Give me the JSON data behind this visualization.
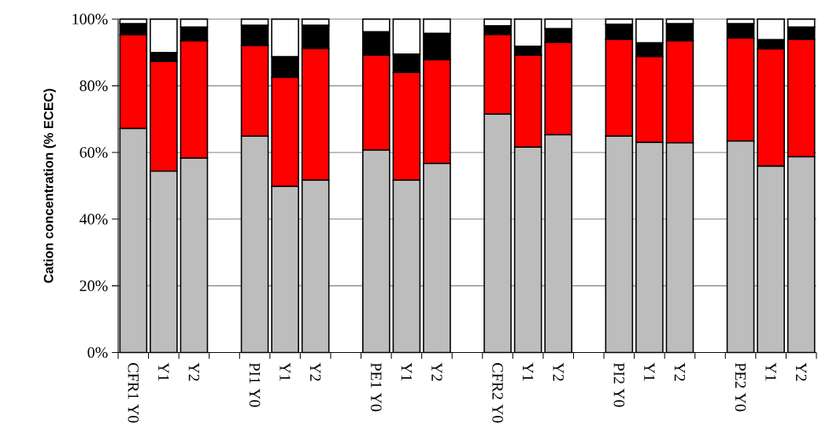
{
  "chart_data": {
    "type": "bar",
    "stacked": true,
    "ylabel": "Cation concentration (% ECEC)",
    "grid": "y",
    "categories": [
      "CFR1 Y0",
      "Y1",
      "Y2",
      null,
      "PI1 Y0",
      "Y1",
      "Y2",
      null,
      "PE1 Y0",
      "Y1",
      "Y2",
      null,
      "CFR2 Y0",
      "Y1",
      "Y2",
      null,
      "PI2 Y0",
      "Y1",
      "Y2",
      null,
      "PE2 Y0",
      "Y1",
      "Y2"
    ],
    "ylim": [
      0,
      100
    ],
    "yticks": [
      {
        "value": 0,
        "label": "0%"
      },
      {
        "value": 20,
        "label": "20%"
      },
      {
        "value": 40,
        "label": "40%"
      },
      {
        "value": 60,
        "label": "60%"
      },
      {
        "value": 80,
        "label": "80%"
      },
      {
        "value": 100,
        "label": "100%"
      }
    ],
    "series": [
      {
        "color": "#bdbdbd",
        "values": [
          67.2,
          54.4,
          58.3,
          null,
          64.9,
          49.8,
          51.7,
          null,
          60.7,
          51.7,
          56.7,
          null,
          71.5,
          61.6,
          65.3,
          null,
          64.9,
          63.0,
          62.9,
          null,
          63.4,
          55.9,
          58.7
        ]
      },
      {
        "color": "#ff0000",
        "values": [
          28.1,
          32.9,
          35.2,
          null,
          27.2,
          32.7,
          39.5,
          null,
          28.5,
          32.3,
          31.1,
          null,
          23.9,
          27.6,
          27.7,
          null,
          29.0,
          25.8,
          30.6,
          null,
          30.9,
          35.2,
          35.2
        ]
      },
      {
        "color": "#000000",
        "values": [
          3.3,
          2.7,
          4.1,
          null,
          6.0,
          6.2,
          6.9,
          null,
          7.0,
          5.5,
          7.9,
          null,
          2.6,
          2.7,
          4.1,
          null,
          4.6,
          4.1,
          5.1,
          null,
          4.3,
          2.7,
          3.7
        ]
      },
      {
        "color": "#ffffff",
        "values": [
          1.4,
          10.0,
          2.4,
          null,
          1.9,
          11.3,
          1.9,
          null,
          3.8,
          10.5,
          4.3,
          null,
          2.0,
          8.1,
          2.9,
          null,
          1.5,
          7.1,
          1.4,
          null,
          1.4,
          6.2,
          2.4
        ]
      }
    ]
  }
}
